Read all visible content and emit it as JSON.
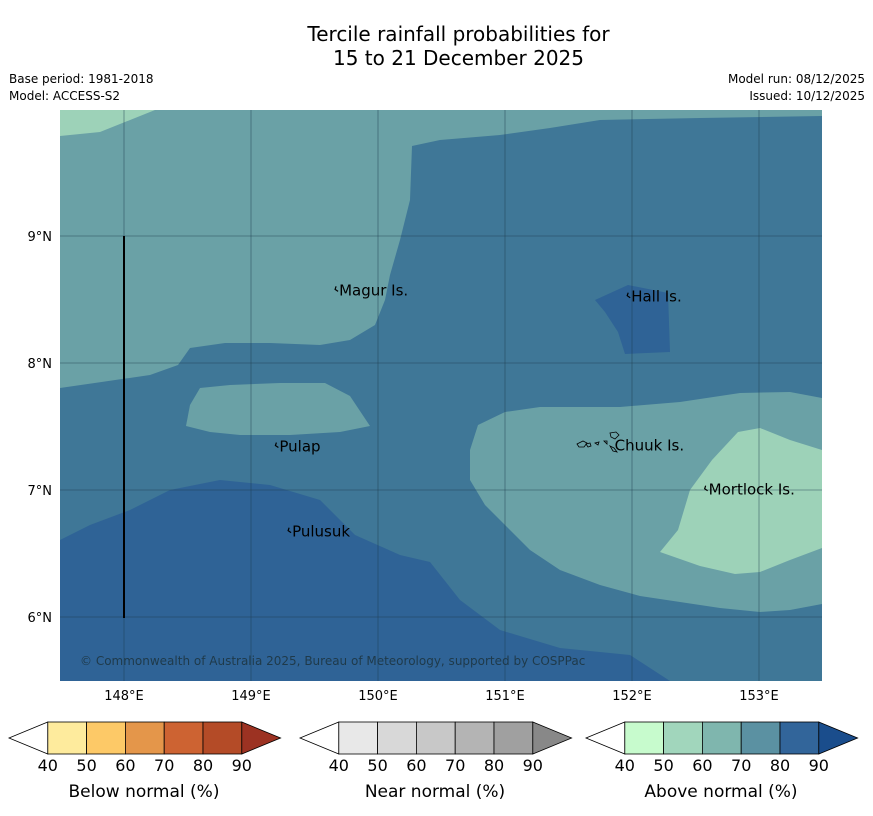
{
  "title_line1": "Tercile rainfall probabilities for",
  "title_line2": "15 to 21 December 2025",
  "base_period": "Base period: 1981-2018",
  "model": "Model: ACCESS-S2",
  "model_run": "Model run: 08/12/2025",
  "issued": "Issued: 10/12/2025",
  "copyright": "© Commonwealth of Australia 2025, Bureau of Meteorology, supported by COSPPac",
  "lon_labels": [
    "148°E",
    "149°E",
    "150°E",
    "151°E",
    "152°E",
    "153°E"
  ],
  "lat_labels": [
    "9°N",
    "8°N",
    "7°N",
    "6°N"
  ],
  "places": [
    {
      "name": "Magur Is.",
      "lon": 149.67,
      "lat": 8.58
    },
    {
      "name": "Hall Is.",
      "lon": 151.97,
      "lat": 8.53
    },
    {
      "name": "Pulap",
      "lon": 149.2,
      "lat": 7.35
    },
    {
      "name": "Chuuk Is.",
      "lon": 151.84,
      "lat": 7.36
    },
    {
      "name": "Mortlock Is.",
      "lon": 152.58,
      "lat": 7.01
    },
    {
      "name": "Pulusuk",
      "lon": 149.3,
      "lat": 6.68
    }
  ],
  "colors": {
    "above_40": "#c7fbcd",
    "above_50": "#9dd2b8",
    "above_60": "#7fb6ae",
    "above_70": "#6aa1a6",
    "above_80": "#3f7797",
    "above_90": "#2f6396"
  },
  "colorbars": [
    {
      "name": "Below normal (%)",
      "ticks": [
        "40",
        "50",
        "60",
        "70",
        "80",
        "90"
      ],
      "colors": [
        "#ffffff",
        "#feeb9d",
        "#fdc967",
        "#e4964a",
        "#cd6332",
        "#b44b27",
        "#9c3222"
      ]
    },
    {
      "name": "Near normal (%)",
      "ticks": [
        "40",
        "50",
        "60",
        "70",
        "80",
        "90"
      ],
      "colors": [
        "#ffffff",
        "#e8e8e8",
        "#d8d8d8",
        "#c8c8c8",
        "#b4b4b4",
        "#a0a0a0",
        "#888888"
      ]
    },
    {
      "name": "Above normal (%)",
      "ticks": [
        "40",
        "50",
        "60",
        "70",
        "80",
        "90"
      ],
      "colors": [
        "#ffffff",
        "#c7fbcd",
        "#a1d6bc",
        "#7fb6ae",
        "#5b91a2",
        "#32659a",
        "#1a4d8c"
      ]
    }
  ]
}
